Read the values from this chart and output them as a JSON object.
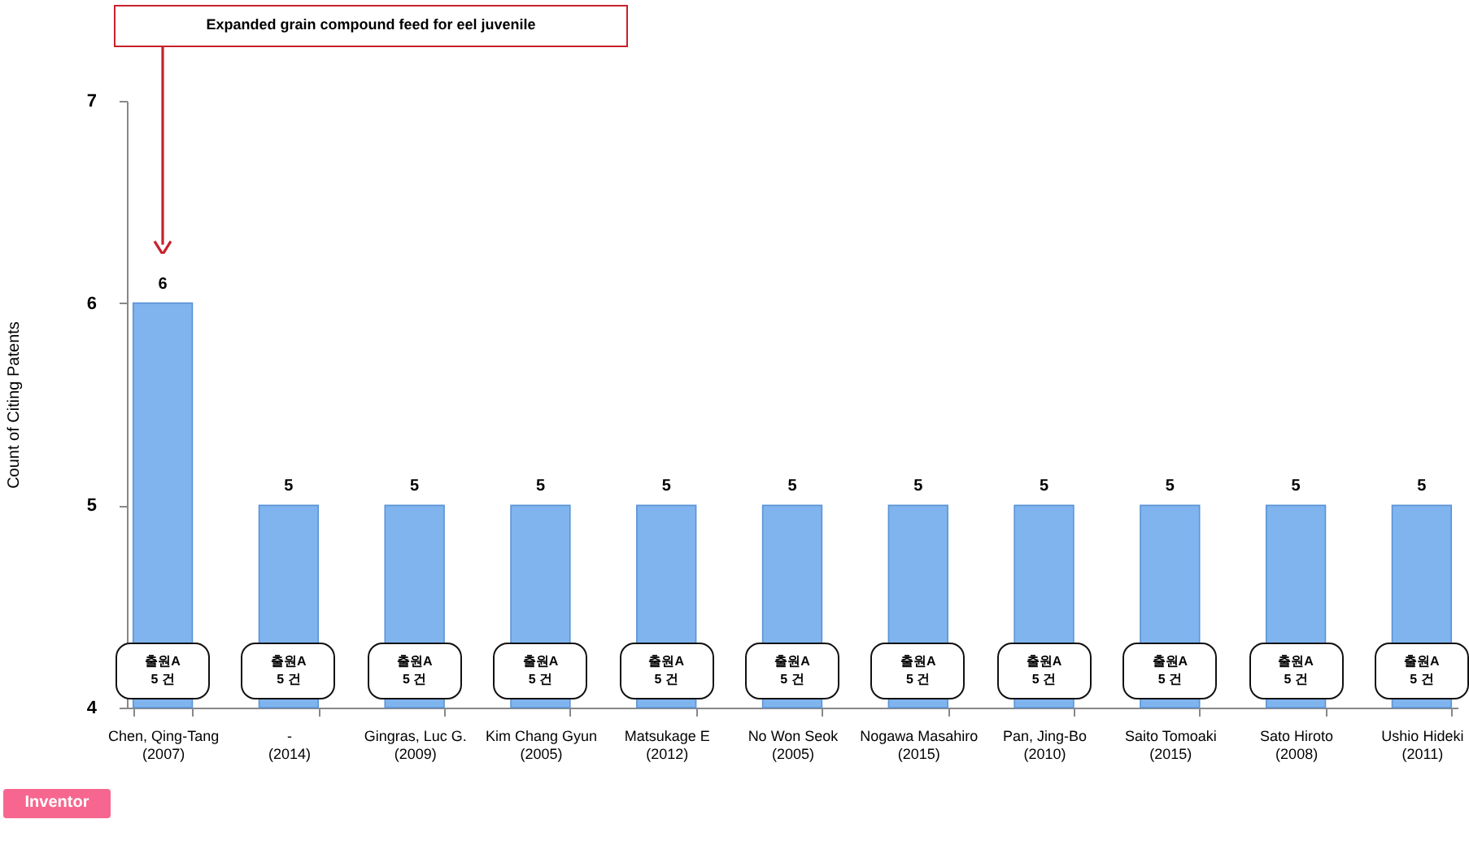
{
  "chart_data": {
    "type": "bar",
    "ylabel": "Count of Citing Patents",
    "categories": [
      "Chen, Qing-Tang (2007)",
      "- (2014)",
      "Gingras, Luc G. (2009)",
      "Kim Chang Gyun (2005)",
      "Matsukage E (2012)",
      "No Won Seok (2005)",
      "Nogawa Masahiro (2015)",
      "Pan, Jing-Bo (2010)",
      "Saito Tomoaki (2015)",
      "Sato Hiroto (2008)",
      "Ushio Hideki (2011)"
    ],
    "values": [
      6,
      5,
      5,
      5,
      5,
      5,
      5,
      5,
      5,
      5,
      5
    ],
    "color": "#7fb4ee",
    "data_labels": true,
    "ylim": [
      4,
      7
    ],
    "yticks": [
      4,
      5,
      6,
      7
    ],
    "annotations": [
      "Expanded grain compound feed for eel juvenile",
      "Inventor",
      "출원A 5 건",
      "출원A 5 건",
      "출원A 5 건",
      "출원A 5 건",
      "출원A 5 건",
      "출원A 5 건",
      "출원A 5 건",
      "출원A 5 건",
      "출원A 5 건",
      "출원A 5 건",
      "출원A 5 건"
    ]
  }
}
